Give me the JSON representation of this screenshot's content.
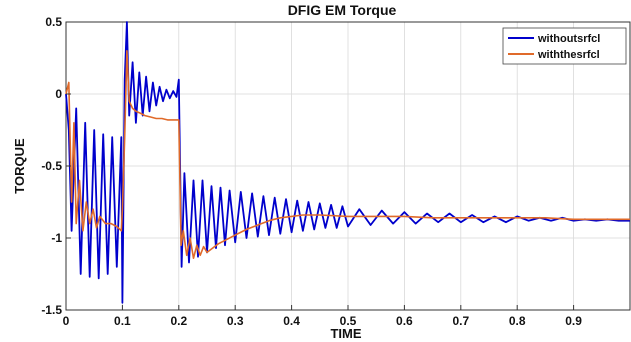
{
  "chart_data": {
    "type": "line",
    "title": "DFIG EM Torque",
    "xlabel": "TIME",
    "ylabel": "TORQUE",
    "xlim": [
      0,
      1
    ],
    "ylim": [
      -1.5,
      0.5
    ],
    "xticks": [
      0,
      0.1,
      0.2,
      0.3,
      0.4,
      0.5,
      0.6,
      0.7,
      0.8,
      0.9
    ],
    "xtick_labels": [
      "0",
      "0.1",
      "0.2",
      "0.3",
      "0.4",
      "0.5",
      "0.6",
      "0.7",
      "0.8",
      "0.9"
    ],
    "yticks": [
      -1.5,
      -1,
      -0.5,
      0,
      0.5
    ],
    "ytick_labels": [
      "-1.5",
      "-1",
      "-0.5",
      "0",
      "0.5"
    ],
    "grid": true,
    "legend_position": "top-right",
    "series": [
      {
        "name": "withoutsrfcl",
        "color": "#0000cc",
        "x": [
          0,
          0.005,
          0.01,
          0.018,
          0.026,
          0.034,
          0.042,
          0.05,
          0.058,
          0.066,
          0.074,
          0.082,
          0.09,
          0.098,
          0.1,
          0.104,
          0.108,
          0.112,
          0.118,
          0.124,
          0.13,
          0.136,
          0.142,
          0.148,
          0.154,
          0.16,
          0.166,
          0.172,
          0.178,
          0.184,
          0.19,
          0.196,
          0.2,
          0.205,
          0.21,
          0.218,
          0.226,
          0.234,
          0.242,
          0.25,
          0.258,
          0.266,
          0.274,
          0.282,
          0.29,
          0.3,
          0.31,
          0.32,
          0.33,
          0.34,
          0.35,
          0.36,
          0.37,
          0.38,
          0.39,
          0.4,
          0.41,
          0.42,
          0.43,
          0.44,
          0.45,
          0.46,
          0.47,
          0.48,
          0.49,
          0.5,
          0.52,
          0.54,
          0.56,
          0.58,
          0.6,
          0.62,
          0.64,
          0.66,
          0.68,
          0.7,
          0.72,
          0.74,
          0.76,
          0.78,
          0.8,
          0.82,
          0.84,
          0.86,
          0.88,
          0.9,
          0.92,
          0.94,
          0.96,
          0.98,
          1.0
        ],
        "y": [
          0,
          -0.25,
          -0.95,
          -0.1,
          -1.25,
          -0.2,
          -1.27,
          -0.25,
          -1.28,
          -0.28,
          -1.25,
          -0.3,
          -1.2,
          -0.3,
          -1.45,
          0.1,
          0.5,
          -0.15,
          0.22,
          -0.2,
          0.15,
          -0.15,
          0.12,
          -0.12,
          0.08,
          -0.08,
          0.05,
          -0.05,
          0.03,
          -0.03,
          0.02,
          -0.02,
          0.1,
          -1.2,
          -0.55,
          -1.17,
          -0.6,
          -1.13,
          -0.6,
          -1.1,
          -0.64,
          -1.07,
          -0.65,
          -1.05,
          -0.67,
          -1.03,
          -0.68,
          -1.0,
          -0.69,
          -0.99,
          -0.71,
          -0.98,
          -0.72,
          -0.97,
          -0.73,
          -0.96,
          -0.74,
          -0.95,
          -0.75,
          -0.94,
          -0.76,
          -0.93,
          -0.77,
          -0.93,
          -0.78,
          -0.92,
          -0.8,
          -0.91,
          -0.81,
          -0.9,
          -0.82,
          -0.9,
          -0.83,
          -0.89,
          -0.83,
          -0.89,
          -0.84,
          -0.89,
          -0.85,
          -0.89,
          -0.85,
          -0.88,
          -0.86,
          -0.88,
          -0.86,
          -0.88,
          -0.87,
          -0.88,
          -0.87,
          -0.88,
          -0.88
        ]
      },
      {
        "name": "withthesrfcl",
        "color": "#e06a2a",
        "x": [
          0,
          0.005,
          0.01,
          0.014,
          0.018,
          0.024,
          0.03,
          0.036,
          0.042,
          0.048,
          0.054,
          0.06,
          0.07,
          0.08,
          0.09,
          0.098,
          0.1,
          0.104,
          0.108,
          0.112,
          0.118,
          0.124,
          0.13,
          0.14,
          0.15,
          0.16,
          0.17,
          0.18,
          0.19,
          0.198,
          0.2,
          0.204,
          0.208,
          0.214,
          0.22,
          0.226,
          0.232,
          0.238,
          0.244,
          0.25,
          0.26,
          0.27,
          0.28,
          0.3,
          0.32,
          0.34,
          0.36,
          0.38,
          0.4,
          0.42,
          0.45,
          0.5,
          0.55,
          0.6,
          0.65,
          0.7,
          0.75,
          0.8,
          0.85,
          0.9,
          0.95,
          1.0
        ],
        "y": [
          0,
          0.08,
          -0.75,
          -0.2,
          -0.9,
          -0.6,
          -0.95,
          -0.75,
          -0.9,
          -0.8,
          -0.93,
          -0.85,
          -0.9,
          -0.9,
          -0.92,
          -0.95,
          -0.8,
          -0.3,
          0.3,
          -0.05,
          -0.1,
          -0.12,
          -0.13,
          -0.15,
          -0.16,
          -0.17,
          -0.17,
          -0.18,
          -0.18,
          -0.18,
          -0.18,
          -1.05,
          -0.95,
          -1.12,
          -1.0,
          -1.14,
          -1.05,
          -1.12,
          -1.06,
          -1.1,
          -1.07,
          -1.04,
          -1.02,
          -0.98,
          -0.94,
          -0.91,
          -0.88,
          -0.86,
          -0.85,
          -0.84,
          -0.84,
          -0.85,
          -0.85,
          -0.85,
          -0.86,
          -0.86,
          -0.86,
          -0.86,
          -0.86,
          -0.87,
          -0.87,
          -0.87
        ]
      }
    ]
  }
}
